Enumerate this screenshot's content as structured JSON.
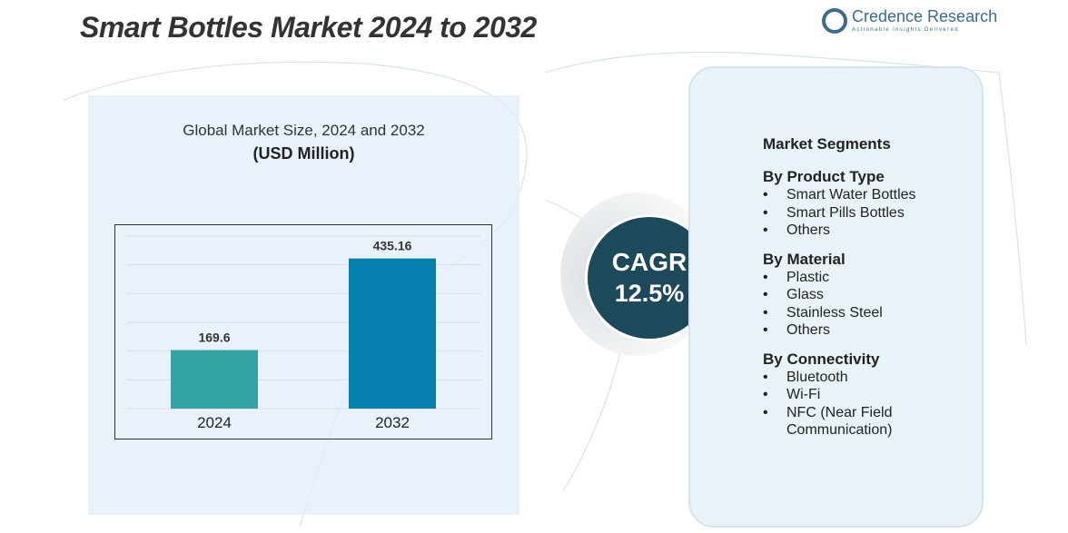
{
  "title": "Smart Bottles Market 2024 to 2032",
  "logo": {
    "name": "Credence Research",
    "tagline": "Actionable Insights Delivered"
  },
  "chart_data": {
    "type": "bar",
    "title": "Global Market Size, 2024 and 2032",
    "subtitle": "(USD Million)",
    "categories": [
      "2024",
      "2032"
    ],
    "values": [
      169.6,
      435.16
    ],
    "data_labels": [
      "169.6",
      "435.16"
    ],
    "colors": [
      "#33a3a3",
      "#0580b0"
    ],
    "ylim": [
      0,
      500
    ],
    "grid": true
  },
  "cagr": {
    "label": "CAGR",
    "value": "12.5%"
  },
  "segments": {
    "heading": "Market Segments",
    "groups": [
      {
        "title": "By Product Type",
        "items": [
          "Smart Water Bottles",
          "Smart Pills Bottles",
          "Others"
        ]
      },
      {
        "title": "By Material",
        "items": [
          "Plastic",
          "Glass",
          "Stainless Steel",
          "Others"
        ]
      },
      {
        "title": "By Connectivity",
        "items": [
          "Bluetooth",
          "Wi-Fi",
          "NFC (Near Field Communication)"
        ]
      }
    ]
  }
}
